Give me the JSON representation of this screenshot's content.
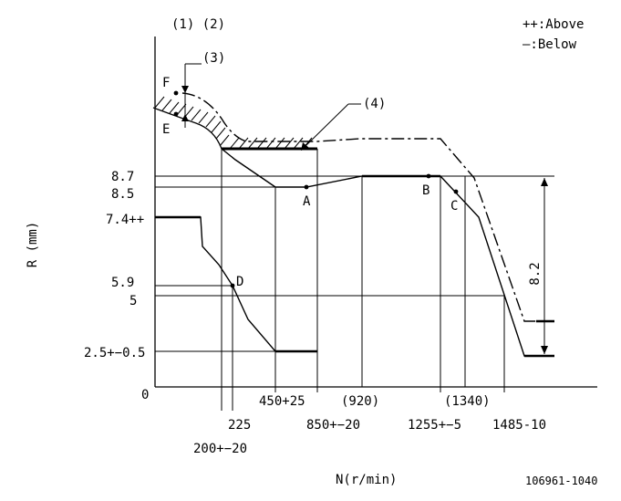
{
  "header": {
    "callouts_1_2": "(1) (2)",
    "callout_3": "(3)",
    "callout_4": "(4)"
  },
  "legend": {
    "above": "++:Above",
    "below": "—:Below"
  },
  "axis": {
    "y_label": "R (mm)",
    "x_label": "N(r/min)",
    "origin": "0"
  },
  "y_ticks": {
    "v87": "8.7",
    "v85": "8.5",
    "v74": "7.4++",
    "v59": "5.9",
    "v5": "5",
    "v25": "2.5+−0.5"
  },
  "x_ticks": {
    "t200": "200+−20",
    "t225": "225",
    "t450": "450+25",
    "t850": "850+−20",
    "t920": "(920)",
    "t1255": "1255+−5",
    "t1340": "(1340)",
    "t1485": "1485-10"
  },
  "points": {
    "F": "F",
    "E": "E",
    "A": "A",
    "B": "B",
    "C": "C",
    "D": "D"
  },
  "dimension": "8.2",
  "drawing_id": "106961-1040"
}
